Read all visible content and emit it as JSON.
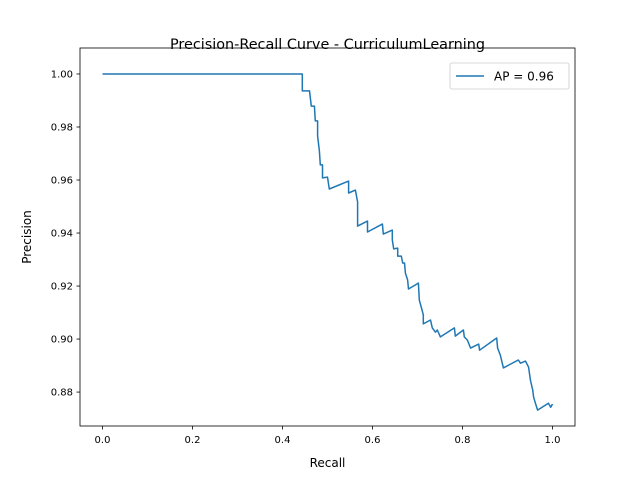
{
  "chart_data": {
    "type": "line",
    "title": "Precision-Recall Curve - CurriculumLearning",
    "xlabel": "Recall",
    "ylabel": "Precision",
    "xlim": [
      -0.05,
      1.05
    ],
    "ylim": [
      0.8672,
      1.0098
    ],
    "xticks": [
      0.0,
      0.2,
      0.4,
      0.6,
      0.8,
      1.0
    ],
    "xtick_labels": [
      "0.0",
      "0.2",
      "0.4",
      "0.6",
      "0.8",
      "1.0"
    ],
    "yticks": [
      0.88,
      0.9,
      0.92,
      0.94,
      0.96,
      0.98,
      1.0
    ],
    "ytick_labels": [
      "0.88",
      "0.90",
      "0.92",
      "0.94",
      "0.96",
      "0.98",
      "1.00"
    ],
    "grid": false,
    "legend_position": "top-right",
    "series": [
      {
        "name": "AP = 0.96",
        "color": "#1f77b4",
        "x": [
          0,
          0.444,
          0.444,
          0.46,
          0.464,
          0.471,
          0.473,
          0.478,
          0.478,
          0.482,
          0.484,
          0.489,
          0.489,
          0.5,
          0.504,
          0.547,
          0.547,
          0.562,
          0.567,
          0.567,
          0.589,
          0.589,
          0.622,
          0.624,
          0.644,
          0.644,
          0.647,
          0.656,
          0.656,
          0.664,
          0.667,
          0.671,
          0.673,
          0.678,
          0.68,
          0.702,
          0.704,
          0.709,
          0.713,
          0.713,
          0.729,
          0.733,
          0.74,
          0.744,
          0.751,
          0.782,
          0.784,
          0.802,
          0.804,
          0.811,
          0.818,
          0.836,
          0.838,
          0.876,
          0.878,
          0.884,
          0.891,
          0.924,
          0.929,
          0.94,
          0.947,
          0.951,
          0.956,
          0.958,
          0.962,
          0.967,
          0.991,
          0.996,
          1.0
        ],
        "y": [
          1.0,
          1.0,
          0.9936,
          0.9936,
          0.9879,
          0.9879,
          0.9823,
          0.9823,
          0.9766,
          0.9709,
          0.9657,
          0.9657,
          0.9608,
          0.9611,
          0.9566,
          0.9596,
          0.9551,
          0.9562,
          0.9517,
          0.9426,
          0.9445,
          0.9404,
          0.9434,
          0.9396,
          0.9411,
          0.9374,
          0.934,
          0.9343,
          0.9313,
          0.9313,
          0.9287,
          0.9287,
          0.9249,
          0.9223,
          0.9189,
          0.9211,
          0.9147,
          0.9117,
          0.9091,
          0.9057,
          0.9072,
          0.9042,
          0.9026,
          0.9034,
          0.9008,
          0.9042,
          0.9011,
          0.9034,
          0.9008,
          0.8996,
          0.8966,
          0.8981,
          0.8958,
          0.9004,
          0.8966,
          0.894,
          0.8891,
          0.8921,
          0.8909,
          0.8917,
          0.8894,
          0.8845,
          0.8808,
          0.8781,
          0.8758,
          0.8732,
          0.8758,
          0.8743,
          0.8755
        ]
      }
    ]
  }
}
